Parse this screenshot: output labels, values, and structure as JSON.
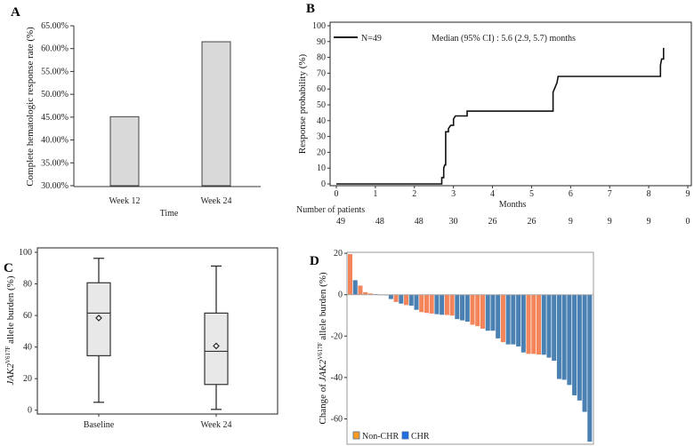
{
  "chart_data": [
    {
      "panel": "A",
      "type": "bar",
      "categories": [
        "Week 12",
        "Week 24"
      ],
      "values": [
        45.1,
        61.5
      ],
      "xlabel": "Time",
      "ylabel": "Complete hematologic response rate (%)",
      "ylim": [
        30,
        65
      ],
      "yticks": [
        "30.00%",
        "35.00%",
        "40.00%",
        "45.00%",
        "50.00%",
        "55.00%",
        "60.00%",
        "65.00%"
      ],
      "bar_color": "#d9d9d9"
    },
    {
      "panel": "B",
      "type": "line",
      "xlabel": "Months",
      "ylabel": "Response probability (%)",
      "xlim": [
        0,
        9
      ],
      "ylim": [
        0,
        100
      ],
      "xticks": [
        "0",
        "1",
        "2",
        "3",
        "4",
        "5",
        "6",
        "7",
        "8",
        "9"
      ],
      "yticks": [
        "0",
        "10",
        "20",
        "30",
        "40",
        "50",
        "60",
        "70",
        "80",
        "90",
        "100"
      ],
      "legend": "N=49",
      "annotation": "Median (95% CI) : 5.6 (2.9, 5.7) months",
      "risk_table_label": "Number of patients",
      "risk_table": [
        "49",
        "48",
        "48",
        "30",
        "26",
        "26",
        "9",
        "9",
        "9",
        "0"
      ],
      "series": [
        {
          "name": "N=49",
          "step_x": [
            0,
            2.7,
            2.7,
            2.75,
            2.75,
            2.78,
            2.8,
            2.8,
            2.87,
            2.87,
            2.93,
            3.0,
            3.0,
            3.05,
            3.35,
            3.35,
            5.55,
            5.55,
            5.6,
            5.65,
            5.68,
            8.3,
            8.3,
            8.33,
            8.38,
            8.38
          ],
          "step_y": [
            0,
            0,
            4,
            4,
            10,
            12,
            12,
            33,
            33,
            35,
            37,
            37,
            41,
            43,
            43,
            46,
            46,
            58,
            61,
            64,
            68,
            68,
            75,
            79,
            79,
            86
          ]
        }
      ]
    },
    {
      "panel": "C",
      "type": "box",
      "categories": [
        "Baseline",
        "Week 24"
      ],
      "ylabel_prefix": "JAK2",
      "ylabel_sup": "V617F",
      "ylabel_suffix": " allele burden (%)",
      "ylim": [
        0,
        100
      ],
      "yticks": [
        "0",
        "20",
        "40",
        "60",
        "80",
        "100"
      ],
      "boxes": [
        {
          "min": 5,
          "q1": 34.5,
          "median": 61.5,
          "q3": 80.7,
          "max": 96.2,
          "mean": 58.4
        },
        {
          "min": 0.5,
          "q1": 16.3,
          "median": 37.3,
          "q3": 61.5,
          "max": 91.3,
          "mean": 40.7
        }
      ],
      "box_color": "#e8e8e8"
    },
    {
      "panel": "D",
      "type": "bar",
      "subtype": "waterfall",
      "ylabel_prefix": "Change of ",
      "ylabel_italic": "JAK2",
      "ylabel_sup": "V617F",
      "ylabel_suffix": " allele burden (%)",
      "ylim": [
        -72,
        21
      ],
      "yticks": [
        "-60",
        "-40",
        "-20",
        "0",
        "20"
      ],
      "legend": [
        {
          "label": "Non-CHR",
          "color": "#ff9a1f"
        },
        {
          "label": "CHR",
          "color": "#1f6fe0"
        }
      ],
      "group_colors": {
        "Non-CHR": "#f4845a",
        "CHR": "#4a80b2"
      },
      "values": [
        19.6,
        7,
        4.4,
        1.2,
        0.6,
        0.3,
        -0.2,
        -0.3,
        -2.1,
        -3.5,
        -4.3,
        -5,
        -5.3,
        -7.3,
        -8.4,
        -8.8,
        -9.1,
        -9.4,
        -9.7,
        -9.8,
        -10.1,
        -11.8,
        -12.4,
        -13,
        -14.5,
        -15.2,
        -16.4,
        -17.4,
        -17.4,
        -21.1,
        -22.9,
        -24,
        -24,
        -25,
        -27.9,
        -28.6,
        -28.6,
        -28.9,
        -29,
        -30.4,
        -31.9,
        -40.7,
        -41.1,
        -43.6,
        -48.6,
        -51.1,
        -56.6,
        -71
      ],
      "groups": [
        "Non-CHR",
        "CHR",
        "Non-CHR",
        "Non-CHR",
        "Non-CHR",
        "CHR",
        "CHR",
        "CHR",
        "CHR",
        "Non-CHR",
        "CHR",
        "Non-CHR",
        "CHR",
        "CHR",
        "Non-CHR",
        "Non-CHR",
        "Non-CHR",
        "CHR",
        "CHR",
        "Non-CHR",
        "Non-CHR",
        "CHR",
        "CHR",
        "CHR",
        "Non-CHR",
        "Non-CHR",
        "Non-CHR",
        "CHR",
        "CHR",
        "CHR",
        "Non-CHR",
        "CHR",
        "CHR",
        "CHR",
        "CHR",
        "Non-CHR",
        "Non-CHR",
        "Non-CHR",
        "CHR",
        "CHR",
        "CHR",
        "CHR",
        "CHR",
        "CHR",
        "CHR",
        "CHR",
        "CHR",
        "CHR"
      ]
    }
  ],
  "panels": {
    "a": "A",
    "b": "B",
    "c": "C",
    "d": "D"
  }
}
